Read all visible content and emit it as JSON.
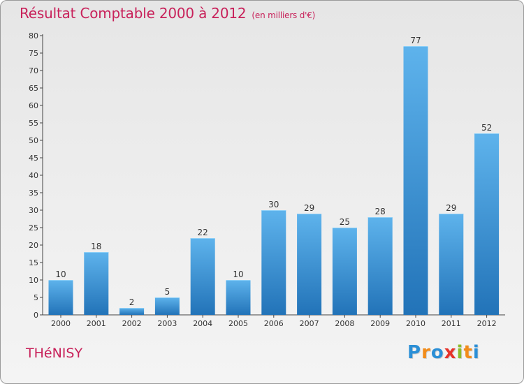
{
  "chart_data": {
    "type": "bar",
    "title": "Résultat Comptable 2000 à 2012",
    "subtitle": "(en milliers d'€)",
    "categories": [
      "2000",
      "2001",
      "2002",
      "2003",
      "2004",
      "2005",
      "2006",
      "2007",
      "2008",
      "2009",
      "2010",
      "2011",
      "2012"
    ],
    "values": [
      10,
      18,
      2,
      5,
      22,
      10,
      30,
      29,
      25,
      28,
      77,
      29,
      52
    ],
    "xlabel": "",
    "ylabel": "",
    "ylim": [
      0,
      80
    ],
    "yticks": [
      0,
      5,
      10,
      15,
      20,
      25,
      30,
      35,
      40,
      45,
      50,
      55,
      60,
      65,
      70,
      75,
      80
    ],
    "grid": false,
    "legend": "none"
  },
  "place_name": "THéNISY",
  "brand": {
    "name": "Proxiti",
    "letters": [
      "P",
      "r",
      "o",
      "x",
      "i",
      "t",
      "i"
    ],
    "letter_colors": [
      "#2b8fd6",
      "#f28c1a",
      "#2b8fd6",
      "#e6332a",
      "#8cbd2a",
      "#f28c1a",
      "#2b8fd6"
    ]
  },
  "colors": {
    "accent": "#c8215a",
    "bar_light": "#5eb3ec",
    "bar_dark": "#2273b8",
    "axis": "#444444"
  }
}
